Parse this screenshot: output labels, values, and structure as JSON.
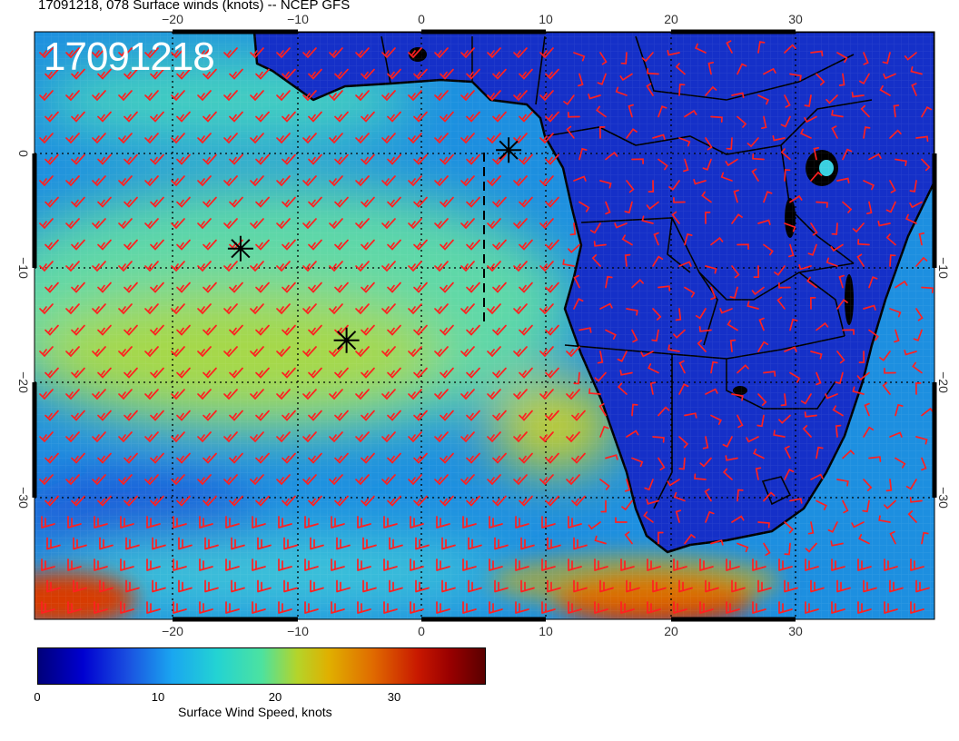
{
  "title": "17091218, 078 Surface winds (knots) -- NCEP GFS",
  "stamp": "17091218",
  "lon_ticks": [
    "−20",
    "−10",
    "0",
    "10",
    "20",
    "30"
  ],
  "lat_ticks_left": [
    "0",
    "−10",
    "−20",
    "−30"
  ],
  "lat_ticks_right": [
    "−10",
    "−20",
    "−30"
  ],
  "colorbar": {
    "label": "Surface Wind Speed, knots",
    "ticks": [
      "0",
      "10",
      "20",
      "30"
    ],
    "range": [
      0,
      37
    ]
  },
  "colors": {
    "barb": "#ff2020",
    "land_bg": "#1530c8",
    "ocean_mid": "#2cc0e0",
    "jet": "#d41600",
    "coast": "#000000"
  },
  "markers": [
    {
      "lon": 7,
      "lat": 0.3
    },
    {
      "lon": -14.5,
      "lat": -8.3
    },
    {
      "lon": -6,
      "lat": -16.3
    }
  ]
}
